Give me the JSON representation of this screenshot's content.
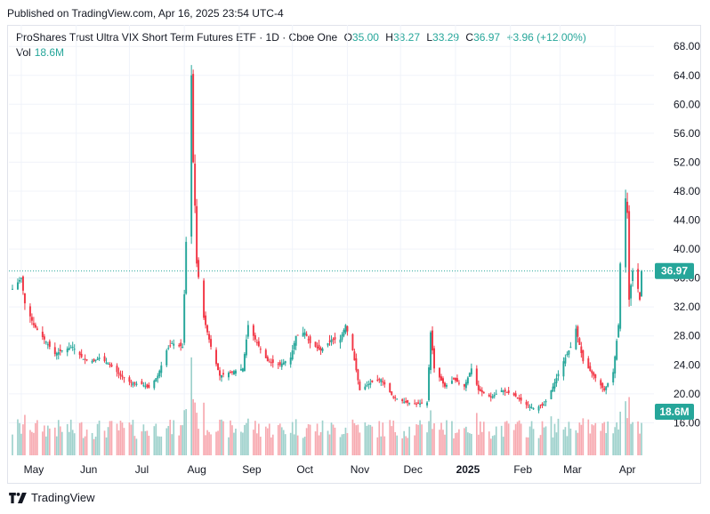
{
  "header": {
    "published": "Published on TradingView.com, Apr 16, 2025 23:54 UTC-4"
  },
  "legend": {
    "symbol": "ProShares Trust Ultra VIX Short Term Futures ETF · 1D · Cboe One",
    "o_label": "O",
    "o_value": "35.00",
    "h_label": "H",
    "h_value": "38.27",
    "l_label": "L",
    "l_value": "33.29",
    "c_label": "C",
    "c_value": "36.97",
    "change": "+3.96 (+12.00%)",
    "vol_label": "Vol",
    "vol_value": "18.6M"
  },
  "footer": {
    "brand": "TradingView",
    "logo": "tradingview-logo-icon"
  },
  "colors": {
    "up": "#26a69a",
    "down": "#f23645",
    "up_volume": "#9ed1cc",
    "down_volume": "#f7a9b0",
    "grid": "#f0f3fa"
  },
  "chart_data": {
    "type": "candlestick",
    "y_ticks": [
      "68.00",
      "64.00",
      "60.00",
      "56.00",
      "52.00",
      "48.00",
      "44.00",
      "40.00",
      "36.00",
      "32.00",
      "28.00",
      "24.00",
      "20.00",
      "16.00"
    ],
    "x_ticks": [
      "May",
      "Jun",
      "Jul",
      "Aug",
      "Sep",
      "Oct",
      "Nov",
      "Dec",
      "2025",
      "Feb",
      "Mar",
      "Apr"
    ],
    "ylim": [
      11.5,
      69.5
    ],
    "last_price": 36.97,
    "last_price_label": "36.97",
    "volume_label": "18.6M",
    "close_series": [
      {
        "date": "2024-04-26",
        "c": 34.5
      },
      {
        "date": "2024-05-01",
        "c": 36.0
      },
      {
        "date": "2024-05-03",
        "c": 32.5
      },
      {
        "date": "2024-05-08",
        "c": 29.5
      },
      {
        "date": "2024-05-14",
        "c": 27.5
      },
      {
        "date": "2024-05-20",
        "c": 25.5
      },
      {
        "date": "2024-05-24",
        "c": 26.0
      },
      {
        "date": "2024-05-30",
        "c": 26.5
      },
      {
        "date": "2024-06-05",
        "c": 24.8
      },
      {
        "date": "2024-06-11",
        "c": 24.5
      },
      {
        "date": "2024-06-14",
        "c": 25.0
      },
      {
        "date": "2024-06-20",
        "c": 24.0
      },
      {
        "date": "2024-06-26",
        "c": 22.5
      },
      {
        "date": "2024-07-02",
        "c": 21.5
      },
      {
        "date": "2024-07-08",
        "c": 21.3
      },
      {
        "date": "2024-07-12",
        "c": 20.8
      },
      {
        "date": "2024-07-17",
        "c": 22.5
      },
      {
        "date": "2024-07-22",
        "c": 26.0
      },
      {
        "date": "2024-07-25",
        "c": 27.0
      },
      {
        "date": "2024-07-31",
        "c": 26.5
      },
      {
        "date": "2024-08-02",
        "c": 41.0
      },
      {
        "date": "2024-08-05",
        "c": 64.0
      },
      {
        "date": "2024-08-06",
        "c": 52.0
      },
      {
        "date": "2024-08-07",
        "c": 46.0
      },
      {
        "date": "2024-08-08",
        "c": 38.0
      },
      {
        "date": "2024-08-12",
        "c": 30.5
      },
      {
        "date": "2024-08-16",
        "c": 26.5
      },
      {
        "date": "2024-08-21",
        "c": 22.5
      },
      {
        "date": "2024-08-27",
        "c": 23.0
      },
      {
        "date": "2024-09-03",
        "c": 23.5
      },
      {
        "date": "2024-09-06",
        "c": 29.5
      },
      {
        "date": "2024-09-11",
        "c": 27.0
      },
      {
        "date": "2024-09-17",
        "c": 24.5
      },
      {
        "date": "2024-09-24",
        "c": 24.0
      },
      {
        "date": "2024-09-30",
        "c": 25.0
      },
      {
        "date": "2024-10-03",
        "c": 28.0
      },
      {
        "date": "2024-10-08",
        "c": 28.5
      },
      {
        "date": "2024-10-11",
        "c": 27.0
      },
      {
        "date": "2024-10-17",
        "c": 26.0
      },
      {
        "date": "2024-10-23",
        "c": 27.5
      },
      {
        "date": "2024-10-28",
        "c": 27.5
      },
      {
        "date": "2024-10-31",
        "c": 29.5
      },
      {
        "date": "2024-11-04",
        "c": 26.0
      },
      {
        "date": "2024-11-08",
        "c": 20.5
      },
      {
        "date": "2024-11-14",
        "c": 21.5
      },
      {
        "date": "2024-11-20",
        "c": 22.0
      },
      {
        "date": "2024-11-27",
        "c": 19.5
      },
      {
        "date": "2024-12-04",
        "c": 18.8
      },
      {
        "date": "2024-12-10",
        "c": 18.6
      },
      {
        "date": "2024-12-16",
        "c": 18.8
      },
      {
        "date": "2024-12-18",
        "c": 28.5
      },
      {
        "date": "2024-12-20",
        "c": 23.5
      },
      {
        "date": "2024-12-26",
        "c": 21.0
      },
      {
        "date": "2024-12-31",
        "c": 22.0
      },
      {
        "date": "2025-01-06",
        "c": 21.0
      },
      {
        "date": "2025-01-10",
        "c": 23.5
      },
      {
        "date": "2025-01-14",
        "c": 20.5
      },
      {
        "date": "2025-01-21",
        "c": 19.5
      },
      {
        "date": "2025-01-27",
        "c": 20.5
      },
      {
        "date": "2025-02-03",
        "c": 19.8
      },
      {
        "date": "2025-02-10",
        "c": 18.5
      },
      {
        "date": "2025-02-14",
        "c": 18.0
      },
      {
        "date": "2025-02-20",
        "c": 18.5
      },
      {
        "date": "2025-02-25",
        "c": 21.0
      },
      {
        "date": "2025-03-03",
        "c": 24.5
      },
      {
        "date": "2025-03-07",
        "c": 26.5
      },
      {
        "date": "2025-03-10",
        "c": 29.0
      },
      {
        "date": "2025-03-14",
        "c": 24.5
      },
      {
        "date": "2025-03-20",
        "c": 22.5
      },
      {
        "date": "2025-03-26",
        "c": 20.5
      },
      {
        "date": "2025-03-31",
        "c": 23.0
      },
      {
        "date": "2025-04-03",
        "c": 29.5
      },
      {
        "date": "2025-04-04",
        "c": 38.0
      },
      {
        "date": "2025-04-07",
        "c": 47.0
      },
      {
        "date": "2025-04-08",
        "c": 45.0
      },
      {
        "date": "2025-04-09",
        "c": 33.0
      },
      {
        "date": "2025-04-11",
        "c": 37.0
      },
      {
        "date": "2025-04-14",
        "c": 34.5
      },
      {
        "date": "2025-04-15",
        "c": 33.0
      },
      {
        "date": "2025-04-16",
        "c": 36.97
      }
    ]
  }
}
